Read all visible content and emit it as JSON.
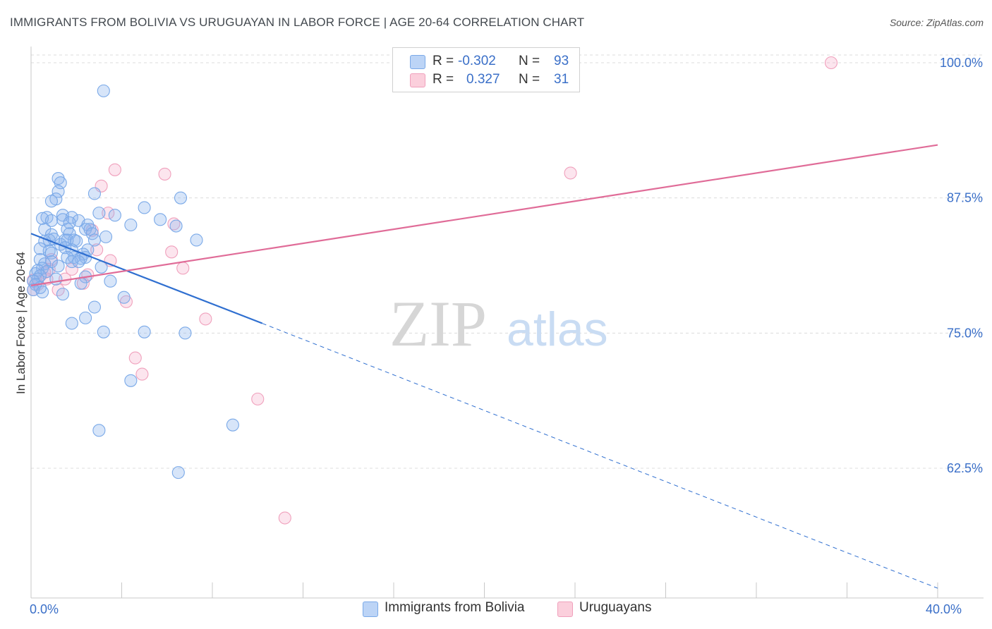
{
  "chart_data": {
    "type": "scatter",
    "title": "IMMIGRANTS FROM BOLIVIA VS URUGUAYAN IN LABOR FORCE | AGE 20-64 CORRELATION CHART",
    "source": "Source: ZipAtlas.com",
    "ylabel": "In Labor Force | Age 20-64",
    "xlabel": "",
    "xlim": [
      0,
      40
    ],
    "ylim": [
      50.5,
      101.5
    ],
    "x_tick_labels": [
      {
        "value": 0,
        "label": "0.0%"
      },
      {
        "value": 40,
        "label": "40.0%"
      }
    ],
    "y_tick_labels": [
      {
        "value": 100,
        "label": "100.0%"
      },
      {
        "value": 87.5,
        "label": "87.5%"
      },
      {
        "value": 75,
        "label": "75.0%"
      },
      {
        "value": 62.5,
        "label": "62.5%"
      }
    ],
    "grid": "horizontal dashed",
    "watermark": {
      "zip": "ZIP",
      "atlas": "atlas"
    },
    "legend": {
      "rows": [
        {
          "r_label": "R =",
          "r_value": "-0.302",
          "n_label": "N =",
          "n_value": "93"
        },
        {
          "r_label": "R =",
          "r_value": "0.327",
          "n_label": "N =",
          "n_value": "31"
        }
      ]
    },
    "series": [
      {
        "name": "Immigrants from Bolivia",
        "color": "#7aa9e8",
        "line_color": "#2f6fd0",
        "trend": {
          "x0": 0,
          "y0": 84.2,
          "x1": 10.2,
          "y1": 75.9,
          "dash_to_x": 40,
          "dash_to_y": 51.4
        },
        "points": [
          [
            3.2,
            97.4
          ],
          [
            1.2,
            89.3
          ],
          [
            1.3,
            88.9
          ],
          [
            1.2,
            88.1
          ],
          [
            2.8,
            87.9
          ],
          [
            6.6,
            87.5
          ],
          [
            1.1,
            87.4
          ],
          [
            0.9,
            87.2
          ],
          [
            5.0,
            86.6
          ],
          [
            3.0,
            86.1
          ],
          [
            3.7,
            85.9
          ],
          [
            1.4,
            85.9
          ],
          [
            1.8,
            85.7
          ],
          [
            0.7,
            85.7
          ],
          [
            0.5,
            85.6
          ],
          [
            1.4,
            85.5
          ],
          [
            0.9,
            85.4
          ],
          [
            2.1,
            85.4
          ],
          [
            5.7,
            85.5
          ],
          [
            1.7,
            85.2
          ],
          [
            2.5,
            85.0
          ],
          [
            4.4,
            85.0
          ],
          [
            6.4,
            84.9
          ],
          [
            2.4,
            84.6
          ],
          [
            0.6,
            84.6
          ],
          [
            1.6,
            84.6
          ],
          [
            2.6,
            84.6
          ],
          [
            1.7,
            84.2
          ],
          [
            2.7,
            84.2
          ],
          [
            0.9,
            84.1
          ],
          [
            3.3,
            83.9
          ],
          [
            7.3,
            83.6
          ],
          [
            2.8,
            83.6
          ],
          [
            1.5,
            83.6
          ],
          [
            1.9,
            83.6
          ],
          [
            0.8,
            83.6
          ],
          [
            1.0,
            83.7
          ],
          [
            1.6,
            83.6
          ],
          [
            0.6,
            83.5
          ],
          [
            2.0,
            83.5
          ],
          [
            1.3,
            83.2
          ],
          [
            1.5,
            82.9
          ],
          [
            0.4,
            82.8
          ],
          [
            1.8,
            82.7
          ],
          [
            2.5,
            82.7
          ],
          [
            0.8,
            82.6
          ],
          [
            0.9,
            82.4
          ],
          [
            2.3,
            82.3
          ],
          [
            2.4,
            82.0
          ],
          [
            1.9,
            82.0
          ],
          [
            1.6,
            82.0
          ],
          [
            2.2,
            81.9
          ],
          [
            0.4,
            81.8
          ],
          [
            1.8,
            81.6
          ],
          [
            2.1,
            81.6
          ],
          [
            0.9,
            81.6
          ],
          [
            0.6,
            81.4
          ],
          [
            1.2,
            81.2
          ],
          [
            3.1,
            81.1
          ],
          [
            0.5,
            81.0
          ],
          [
            0.3,
            80.8
          ],
          [
            0.7,
            80.7
          ],
          [
            0.2,
            80.5
          ],
          [
            0.4,
            80.3
          ],
          [
            2.4,
            80.2
          ],
          [
            1.1,
            80.0
          ],
          [
            0.3,
            80.0
          ],
          [
            0.1,
            79.8
          ],
          [
            3.5,
            79.8
          ],
          [
            2.2,
            79.6
          ],
          [
            0.2,
            79.5
          ],
          [
            0.4,
            79.2
          ],
          [
            0.1,
            79.0
          ],
          [
            0.5,
            78.8
          ],
          [
            1.4,
            78.6
          ],
          [
            4.1,
            78.3
          ],
          [
            2.8,
            77.4
          ],
          [
            2.4,
            76.4
          ],
          [
            1.8,
            75.9
          ],
          [
            3.2,
            75.1
          ],
          [
            5.0,
            75.1
          ],
          [
            6.8,
            75.0
          ],
          [
            4.4,
            70.6
          ],
          [
            8.9,
            66.5
          ],
          [
            3.0,
            66.0
          ],
          [
            6.5,
            62.1
          ]
        ]
      },
      {
        "name": "Uruguayans",
        "color": "#f0a0bc",
        "line_color": "#e06c98",
        "trend": {
          "x0": 0,
          "y0": 79.4,
          "x1": 40,
          "y1": 92.4
        },
        "points": [
          [
            35.3,
            100.0
          ],
          [
            23.8,
            89.8
          ],
          [
            3.7,
            90.1
          ],
          [
            5.9,
            89.7
          ],
          [
            3.1,
            88.6
          ],
          [
            3.4,
            86.1
          ],
          [
            6.3,
            85.1
          ],
          [
            2.7,
            84.5
          ],
          [
            6.2,
            82.5
          ],
          [
            2.9,
            82.7
          ],
          [
            3.5,
            81.7
          ],
          [
            0.9,
            81.8
          ],
          [
            6.7,
            81.0
          ],
          [
            1.8,
            80.9
          ],
          [
            0.8,
            80.9
          ],
          [
            0.6,
            80.6
          ],
          [
            2.5,
            80.4
          ],
          [
            1.5,
            80.0
          ],
          [
            0.7,
            80.0
          ],
          [
            2.3,
            79.6
          ],
          [
            0.1,
            79.9
          ],
          [
            0.3,
            79.5
          ],
          [
            1.2,
            79.0
          ],
          [
            0.1,
            79.0
          ],
          [
            4.2,
            77.9
          ],
          [
            7.7,
            76.3
          ],
          [
            4.6,
            72.7
          ],
          [
            4.9,
            71.2
          ],
          [
            10.0,
            68.9
          ],
          [
            11.2,
            57.9
          ]
        ]
      }
    ]
  }
}
